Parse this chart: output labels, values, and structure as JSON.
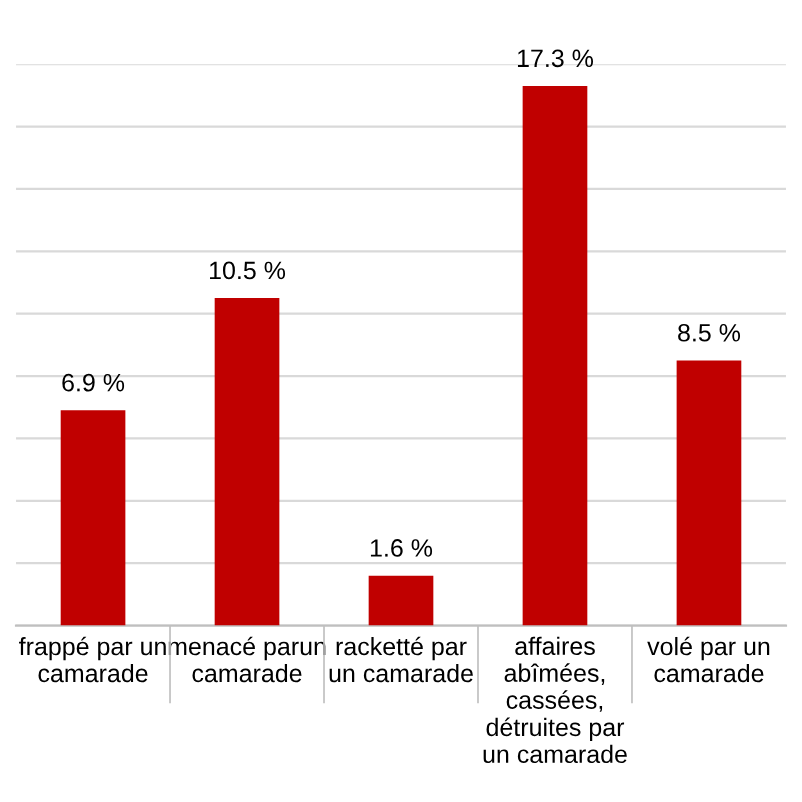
{
  "chart_data": {
    "type": "bar",
    "categories": [
      "frappé par un\ncamarade",
      "menacé parun\ncamarade",
      "racketté par\nun camarade",
      "affaires\nabîmées,\ncassées,\ndétruites par\nun camarade",
      "volé par un\ncamarade"
    ],
    "values": [
      6.9,
      10.5,
      1.6,
      17.3,
      8.5
    ],
    "value_labels": [
      "6.9 %",
      "10.5 %",
      "1.6 %",
      "17.3 %",
      "8.5 %"
    ],
    "color": "#c00000",
    "ylim": [
      0,
      18
    ],
    "yticks": [
      {
        "value": 0,
        "label": null
      },
      {
        "value": 2,
        "label": null
      },
      {
        "value": 4,
        "label": null
      },
      {
        "value": 6,
        "label": null
      },
      {
        "value": 8,
        "label": null
      },
      {
        "value": 10,
        "label": null
      },
      {
        "value": 12,
        "label": null
      },
      {
        "value": 14,
        "label": null
      },
      {
        "value": 16,
        "label": null
      },
      {
        "value": 18,
        "label": null
      }
    ],
    "tick_labels": "x",
    "grid": "y",
    "legend": false
  }
}
